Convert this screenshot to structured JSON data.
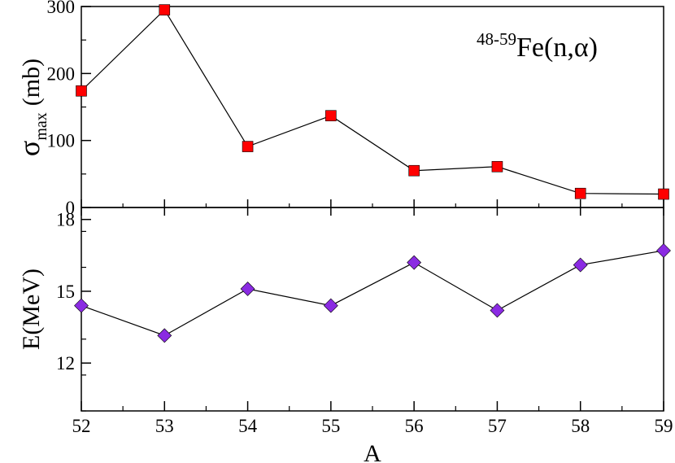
{
  "chart_data": [
    {
      "type": "line",
      "panel": "top",
      "annotation": {
        "superscript": "48-59",
        "text": "Fe(n,α)"
      },
      "ylabel": {
        "symbol": "σ",
        "subscript": "max",
        "unit": "(mb)"
      },
      "ylim": [
        0,
        300
      ],
      "yticks": [
        "0",
        "100",
        "200",
        "300"
      ],
      "x": [
        52,
        53,
        54,
        55,
        56,
        57,
        58,
        59
      ],
      "series": [
        {
          "marker": "square",
          "color": "#ff0000",
          "values": [
            174,
            295,
            91,
            137,
            55,
            61,
            21,
            20
          ]
        }
      ]
    },
    {
      "type": "line",
      "panel": "bottom",
      "ylabel": "E(MeV)",
      "ylim": [
        10,
        18.5
      ],
      "yticks": [
        "12",
        "15",
        "18"
      ],
      "x": [
        52,
        53,
        54,
        55,
        56,
        57,
        58,
        59
      ],
      "xlabel": "A",
      "xlim": [
        52,
        59
      ],
      "xticks": [
        "52",
        "53",
        "54",
        "55",
        "56",
        "57",
        "58",
        "59"
      ],
      "series": [
        {
          "marker": "diamond",
          "color": "#8a2be2",
          "values": [
            14.4,
            13.15,
            15.1,
            14.4,
            16.2,
            14.2,
            16.1,
            16.7
          ]
        }
      ]
    }
  ]
}
